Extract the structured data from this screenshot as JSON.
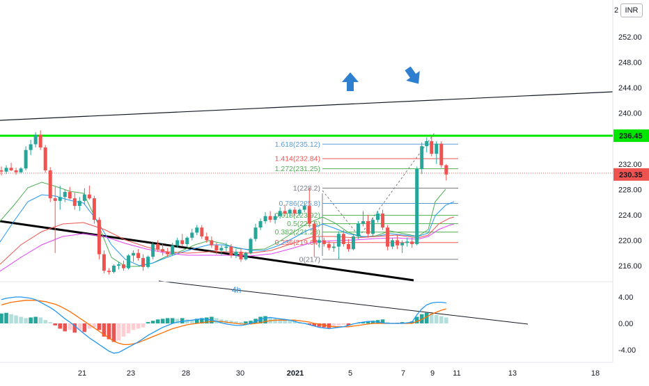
{
  "currency": "INR",
  "chart_data": {
    "type": "candlestick",
    "price_axis": {
      "ticks": [
        "252.00",
        "248.00",
        "244.00",
        "240.00",
        "236.00",
        "232.00",
        "228.00",
        "224.00",
        "220.00",
        "216.00"
      ],
      "values": [
        252,
        248,
        244,
        240,
        236,
        232,
        228,
        224,
        220,
        216
      ],
      "ylim": [
        214.6,
        257
      ],
      "top_label_fragment": "2"
    },
    "macd_axis": {
      "ticks": [
        "4.00",
        "0.00",
        "-4.00"
      ],
      "values": [
        4,
        0,
        -4
      ]
    },
    "time_axis": {
      "labels": [
        "21",
        "23",
        "28",
        "30",
        "2021",
        "5",
        "7",
        "9",
        "11",
        "13",
        "18"
      ],
      "bold_label": "2021"
    },
    "current_price": {
      "value": 230.35,
      "label": "230.35",
      "color": "#ef5350"
    },
    "resistance": {
      "value": 236.45,
      "label": "236.45",
      "color": "#00e600"
    },
    "fibonacci": [
      {
        "label": "1.618(235.12)",
        "value": 235.12,
        "color": "#5b9bd5"
      },
      {
        "label": "1.414(232.84)",
        "value": 232.84,
        "color": "#ef5350"
      },
      {
        "label": "1.272(231.25)",
        "value": 231.25,
        "color": "#4caf50"
      },
      {
        "label": "1(228.2)",
        "value": 228.2,
        "color": "#787b86"
      },
      {
        "label": "0.786(225.8)",
        "value": 225.8,
        "color": "#5b9bd5"
      },
      {
        "label": "0.618(223.92)",
        "value": 223.92,
        "color": "#4caf50"
      },
      {
        "label": "0.5(222.6)",
        "value": 222.6,
        "color": "#4caf50"
      },
      {
        "label": "0.382(221.28)",
        "value": 221.28,
        "color": "#4caf50"
      },
      {
        "label": "0.236(219.64)",
        "value": 219.64,
        "color": "#ef5350"
      },
      {
        "label": "0(217)",
        "value": 217,
        "color": "#787b86"
      }
    ],
    "annotation_text": "4h",
    "colors": {
      "up": "#26a69a",
      "down": "#ef5350",
      "macd": "#2196f3",
      "signal": "#ff6d00"
    },
    "candles": [
      [
        231.0,
        231.6,
        230.2,
        230.8
      ],
      [
        230.8,
        231.8,
        230.4,
        231.4
      ],
      [
        231.4,
        232.2,
        230.9,
        231.0
      ],
      [
        231.0,
        231.4,
        230.3,
        230.7
      ],
      [
        230.7,
        231.5,
        230.5,
        231.3
      ],
      [
        231.3,
        234.8,
        231.0,
        234.2
      ],
      [
        234.2,
        235.8,
        233.4,
        235.1
      ],
      [
        235.1,
        237.0,
        234.6,
        236.6
      ],
      [
        236.6,
        237.3,
        234.2,
        234.6
      ],
      [
        234.6,
        235.0,
        230.6,
        231.0
      ],
      [
        231.0,
        231.5,
        226.0,
        226.6
      ],
      [
        226.6,
        228.4,
        218.0,
        226.2
      ],
      [
        226.2,
        228.6,
        224.8,
        226.8
      ],
      [
        226.8,
        228.0,
        226.0,
        227.6
      ],
      [
        227.6,
        228.4,
        226.4,
        226.6
      ],
      [
        226.6,
        227.5,
        224.8,
        225.4
      ],
      [
        225.4,
        226.8,
        224.6,
        226.2
      ],
      [
        226.2,
        228.2,
        225.6,
        227.2
      ],
      [
        227.2,
        228.6,
        226.4,
        226.6
      ],
      [
        226.6,
        227.0,
        222.6,
        223.2
      ],
      [
        223.2,
        223.6,
        217.0,
        217.8
      ],
      [
        217.8,
        218.4,
        214.8,
        215.2
      ],
      [
        215.2,
        215.6,
        214.6,
        215.0
      ],
      [
        215.0,
        216.2,
        214.8,
        216.0
      ],
      [
        216.0,
        216.6,
        215.4,
        216.2
      ],
      [
        216.2,
        216.8,
        215.2,
        215.6
      ],
      [
        215.6,
        217.8,
        215.4,
        217.6
      ],
      [
        217.6,
        218.4,
        216.6,
        218.0
      ],
      [
        218.0,
        218.6,
        216.8,
        217.2
      ],
      [
        217.2,
        217.8,
        215.2,
        215.8
      ],
      [
        215.8,
        217.6,
        215.6,
        217.4
      ],
      [
        217.4,
        219.8,
        217.0,
        219.4
      ],
      [
        219.4,
        220.0,
        218.2,
        218.6
      ],
      [
        218.6,
        219.4,
        217.6,
        218.2
      ],
      [
        218.2,
        218.8,
        217.4,
        217.8
      ],
      [
        217.8,
        219.6,
        217.6,
        219.2
      ],
      [
        219.2,
        220.4,
        218.8,
        220.0
      ],
      [
        220.0,
        221.0,
        219.0,
        219.4
      ],
      [
        219.4,
        220.6,
        219.0,
        220.4
      ],
      [
        220.4,
        221.8,
        220.0,
        221.2
      ],
      [
        221.2,
        222.4,
        220.8,
        222.0
      ],
      [
        222.0,
        222.4,
        220.2,
        220.6
      ],
      [
        220.6,
        221.2,
        219.6,
        220.0
      ],
      [
        220.0,
        220.6,
        218.8,
        219.2
      ],
      [
        219.2,
        219.6,
        217.8,
        218.4
      ],
      [
        218.4,
        219.2,
        217.6,
        218.8
      ],
      [
        218.8,
        219.6,
        218.2,
        219.0
      ],
      [
        219.0,
        219.4,
        217.2,
        217.6
      ],
      [
        217.6,
        218.6,
        217.2,
        218.2
      ],
      [
        218.2,
        218.8,
        216.6,
        217.0
      ],
      [
        217.0,
        218.2,
        216.8,
        218.0
      ],
      [
        218.0,
        220.4,
        217.8,
        220.2
      ],
      [
        220.2,
        222.6,
        219.8,
        222.0
      ],
      [
        222.0,
        223.4,
        221.6,
        223.0
      ],
      [
        223.0,
        224.4,
        222.6,
        223.8
      ],
      [
        223.8,
        224.6,
        222.8,
        223.2
      ],
      [
        223.2,
        224.2,
        222.6,
        223.8
      ],
      [
        223.8,
        225.2,
        223.4,
        224.6
      ],
      [
        224.6,
        225.6,
        223.8,
        224.2
      ],
      [
        224.2,
        225.0,
        223.6,
        224.8
      ],
      [
        224.8,
        225.2,
        223.8,
        224.2
      ],
      [
        224.2,
        225.0,
        223.8,
        224.8
      ],
      [
        224.8,
        226.0,
        224.4,
        225.4
      ],
      [
        225.4,
        228.2,
        222.0,
        222.6
      ],
      [
        222.6,
        223.0,
        217.4,
        219.6
      ],
      [
        219.6,
        220.6,
        218.8,
        220.0
      ],
      [
        220.0,
        220.4,
        219.0,
        219.4
      ],
      [
        219.4,
        219.8,
        218.4,
        218.8
      ],
      [
        218.8,
        219.6,
        218.2,
        219.0
      ],
      [
        219.0,
        221.4,
        217.0,
        221.0
      ],
      [
        221.0,
        221.6,
        219.0,
        219.4
      ],
      [
        219.4,
        220.2,
        218.2,
        218.6
      ],
      [
        218.6,
        221.0,
        218.4,
        220.6
      ],
      [
        220.6,
        223.0,
        220.2,
        222.6
      ],
      [
        222.6,
        224.6,
        222.2,
        223.0
      ],
      [
        223.0,
        224.0,
        220.4,
        221.0
      ],
      [
        221.0,
        223.6,
        220.6,
        223.2
      ],
      [
        223.2,
        224.6,
        222.8,
        224.2
      ],
      [
        224.2,
        224.8,
        221.6,
        222.0
      ],
      [
        222.0,
        222.4,
        218.4,
        219.0
      ],
      [
        219.0,
        220.4,
        218.6,
        220.0
      ],
      [
        220.0,
        220.8,
        218.6,
        219.2
      ],
      [
        219.2,
        220.0,
        218.0,
        219.6
      ],
      [
        219.6,
        220.4,
        219.0,
        219.8
      ],
      [
        219.8,
        220.4,
        218.8,
        219.4
      ],
      [
        219.4,
        231.6,
        219.2,
        231.2
      ],
      [
        231.2,
        235.4,
        230.4,
        234.8
      ],
      [
        234.8,
        236.2,
        233.8,
        235.6
      ],
      [
        235.6,
        236.4,
        233.2,
        233.6
      ],
      [
        233.6,
        235.6,
        232.0,
        235.2
      ],
      [
        235.2,
        235.6,
        231.4,
        231.8
      ],
      [
        231.8,
        232.0,
        229.4,
        230.35
      ]
    ],
    "macd_hist": [
      1.5,
      1.6,
      1.4,
      1.2,
      1.0,
      0.8,
      0.9,
      1.0,
      0.9,
      0.5,
      0.2,
      -0.3,
      -0.8,
      -1.2,
      -1.0,
      -1.4,
      -1.0,
      -1.3,
      -0.8,
      -0.6,
      -1.0,
      -2.0,
      -2.4,
      -2.8,
      -2.6,
      -2.0,
      -1.5,
      -1.0,
      -0.8,
      -0.6,
      0.2,
      0.4,
      0.6,
      0.7,
      0.8,
      0.8,
      0.7,
      0.8,
      0.6,
      0.5,
      0.7,
      0.8,
      0.9,
      1.0,
      0.8,
      0.6,
      0.5,
      0.4,
      0.3,
      0.2,
      0.3,
      0.4,
      0.7,
      1.0,
      1.1,
      0.9,
      0.8,
      0.7,
      0.6,
      0.5,
      0.4,
      0.2,
      0.1,
      -0.2,
      -0.4,
      -0.5,
      -0.6,
      -0.7,
      -0.5,
      -0.3,
      -0.2,
      -0.3,
      -0.1,
      0.1,
      0.2,
      0.3,
      0.4,
      0.5,
      0.6,
      0.2,
      0.1,
      0.1,
      0.2,
      0.1,
      0.3,
      1.0,
      1.4,
      1.6,
      1.5,
      1.3,
      1.1,
      0.9
    ],
    "macd_line": [
      3.6,
      3.8,
      3.9,
      4.0,
      4.0,
      3.9,
      3.8,
      3.6,
      3.2,
      2.8,
      2.4,
      1.9,
      1.3,
      0.7,
      0.2,
      -0.4,
      -1.0,
      -1.6,
      -2.2,
      -2.7,
      -3.2,
      -3.7,
      -4.2,
      -4.5,
      -4.4,
      -4.0,
      -3.6,
      -3.2,
      -2.8,
      -2.3,
      -1.8,
      -1.4,
      -1.0,
      -0.6,
      -0.3,
      0.0,
      0.2,
      0.3,
      0.4,
      0.5,
      0.6,
      0.7,
      0.6,
      0.5,
      0.3,
      0.1,
      -0.1,
      -0.2,
      -0.3,
      -0.3,
      -0.2,
      0.0,
      0.3,
      0.6,
      0.8,
      0.9,
      0.8,
      0.7,
      0.6,
      0.5,
      0.3,
      0.1,
      0.0,
      -0.2,
      -0.4,
      -0.6,
      -0.7,
      -0.8,
      -0.7,
      -0.6,
      -0.5,
      -0.3,
      -0.1,
      0.1,
      0.2,
      0.3,
      0.3,
      0.2,
      0.1,
      0.0,
      0.0,
      0.0,
      0.0,
      0.1,
      0.2,
      1.3,
      2.2,
      2.8,
      3.1,
      3.2,
      3.2,
      3.1
    ],
    "signal_line": [
      2.8,
      3.0,
      3.2,
      3.3,
      3.4,
      3.5,
      3.5,
      3.5,
      3.4,
      3.3,
      3.1,
      2.9,
      2.6,
      2.2,
      1.8,
      1.3,
      0.8,
      0.3,
      -0.2,
      -0.7,
      -1.2,
      -1.7,
      -2.2,
      -2.7,
      -3.0,
      -3.2,
      -3.2,
      -3.1,
      -2.9,
      -2.6,
      -2.3,
      -2.0,
      -1.7,
      -1.4,
      -1.1,
      -0.8,
      -0.6,
      -0.4,
      -0.2,
      -0.1,
      0.0,
      0.1,
      0.2,
      0.3,
      0.3,
      0.3,
      0.2,
      0.1,
      0.0,
      -0.1,
      -0.1,
      -0.1,
      0.0,
      0.1,
      0.3,
      0.4,
      0.5,
      0.5,
      0.5,
      0.5,
      0.5,
      0.4,
      0.3,
      0.2,
      0.0,
      -0.1,
      -0.3,
      -0.4,
      -0.5,
      -0.5,
      -0.5,
      -0.5,
      -0.4,
      -0.3,
      -0.2,
      -0.1,
      0.0,
      0.0,
      0.0,
      0.0,
      0.0,
      0.0,
      0.0,
      0.0,
      0.0,
      0.3,
      0.6,
      1.0,
      1.4,
      1.7,
      2.0,
      2.2
    ]
  }
}
